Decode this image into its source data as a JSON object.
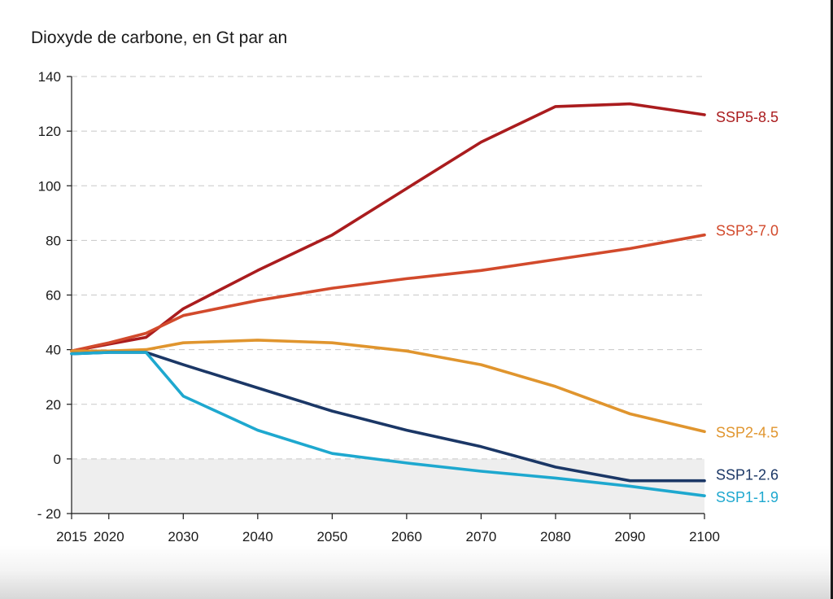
{
  "chart_data": {
    "type": "line",
    "title": "Dioxyde de carbone, en Gt par an",
    "xlabel": "",
    "ylabel": "",
    "xlim": [
      2015,
      2100
    ],
    "ylim": [
      -20,
      140
    ],
    "x_ticks": [
      2015,
      2020,
      2030,
      2040,
      2050,
      2060,
      2070,
      2080,
      2090,
      2100
    ],
    "x_tick_labels": [
      "2015",
      "2020",
      "2030",
      "2040",
      "2050",
      "2060",
      "2070",
      "2080",
      "2090",
      "2100"
    ],
    "y_ticks": [
      -20,
      0,
      20,
      40,
      60,
      80,
      100,
      120,
      140
    ],
    "y_tick_labels": [
      "- 20",
      "0",
      "20",
      "40",
      "60",
      "80",
      "100",
      "120",
      "140"
    ],
    "grid": "horizontal dashed",
    "negative_region_shaded": true,
    "colors": {
      "negative_region": "#eeeeee",
      "gridline": "#c8c8c8",
      "axis": "#1a1a1a"
    },
    "series": [
      {
        "name": "SSP5-8.5",
        "color": "#aa1c1e",
        "x": [
          2015,
          2020,
          2025,
          2030,
          2040,
          2050,
          2060,
          2070,
          2080,
          2090,
          2100
        ],
        "values": [
          39.5,
          42,
          44.5,
          55,
          69,
          82,
          99,
          116,
          129,
          130,
          126
        ]
      },
      {
        "name": "SSP3-7.0",
        "color": "#d24a2c",
        "x": [
          2015,
          2020,
          2025,
          2030,
          2040,
          2050,
          2060,
          2070,
          2080,
          2090,
          2100
        ],
        "values": [
          39.5,
          42.5,
          46,
          52.5,
          58,
          62.5,
          66,
          69,
          73,
          77,
          82
        ]
      },
      {
        "name": "SSP2-4.5",
        "color": "#e0952e",
        "x": [
          2015,
          2020,
          2025,
          2030,
          2040,
          2050,
          2060,
          2070,
          2080,
          2090,
          2100
        ],
        "values": [
          39.5,
          39.5,
          40,
          42.5,
          43.5,
          42.5,
          39.5,
          34.5,
          26.5,
          16.5,
          10
        ]
      },
      {
        "name": "SSP1-2.6",
        "color": "#1b3766",
        "x": [
          2015,
          2020,
          2025,
          2030,
          2040,
          2050,
          2060,
          2070,
          2080,
          2090,
          2100
        ],
        "values": [
          38.5,
          39,
          39,
          34.5,
          26,
          17.5,
          10.5,
          4.5,
          -3,
          -8,
          -8
        ]
      },
      {
        "name": "SSP1-1.9",
        "color": "#1ea8cf",
        "x": [
          2015,
          2020,
          2025,
          2030,
          2040,
          2050,
          2060,
          2070,
          2080,
          2090,
          2100
        ],
        "values": [
          38.5,
          39,
          39,
          23,
          10.5,
          2,
          -1.5,
          -4.5,
          -7,
          -10,
          -13.5
        ]
      }
    ]
  }
}
